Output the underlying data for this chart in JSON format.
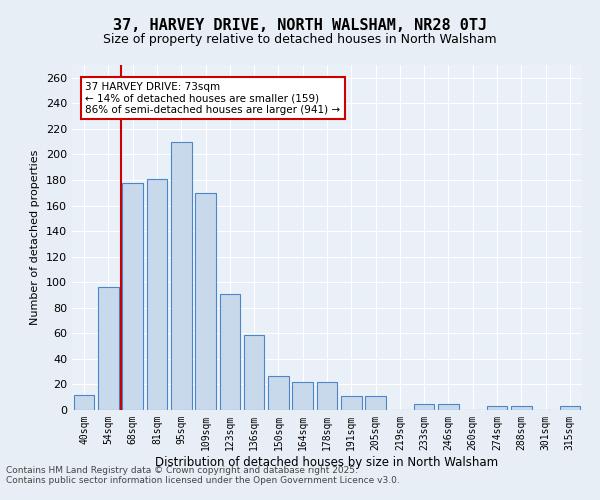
{
  "title": "37, HARVEY DRIVE, NORTH WALSHAM, NR28 0TJ",
  "subtitle": "Size of property relative to detached houses in North Walsham",
  "xlabel": "Distribution of detached houses by size in North Walsham",
  "ylabel": "Number of detached properties",
  "bin_labels": [
    "40sqm",
    "54sqm",
    "68sqm",
    "81sqm",
    "95sqm",
    "109sqm",
    "123sqm",
    "136sqm",
    "150sqm",
    "164sqm",
    "178sqm",
    "191sqm",
    "205sqm",
    "219sqm",
    "233sqm",
    "246sqm",
    "260sqm",
    "274sqm",
    "288sqm",
    "301sqm",
    "315sqm"
  ],
  "bar_heights": [
    12,
    96,
    178,
    181,
    210,
    170,
    91,
    59,
    27,
    22,
    22,
    11,
    11,
    0,
    5,
    5,
    0,
    3,
    3,
    0,
    3
  ],
  "bar_color": "#c9d9ec",
  "bar_edge_color": "#4a86c8",
  "vline_x": 1.5,
  "annotation_text": "37 HARVEY DRIVE: 73sqm\n← 14% of detached houses are smaller (159)\n86% of semi-detached houses are larger (941) →",
  "annotation_box_color": "#ffffff",
  "annotation_box_edge": "#cc0000",
  "vline_color": "#cc0000",
  "footer_line1": "Contains HM Land Registry data © Crown copyright and database right 2025.",
  "footer_line2": "Contains public sector information licensed under the Open Government Licence v3.0.",
  "bg_color": "#e8eef5",
  "plot_bg_color": "#eaf0f8",
  "grid_color": "#ffffff",
  "ylim": [
    0,
    270
  ],
  "yticks": [
    0,
    20,
    40,
    60,
    80,
    100,
    120,
    140,
    160,
    180,
    200,
    220,
    240,
    260
  ]
}
